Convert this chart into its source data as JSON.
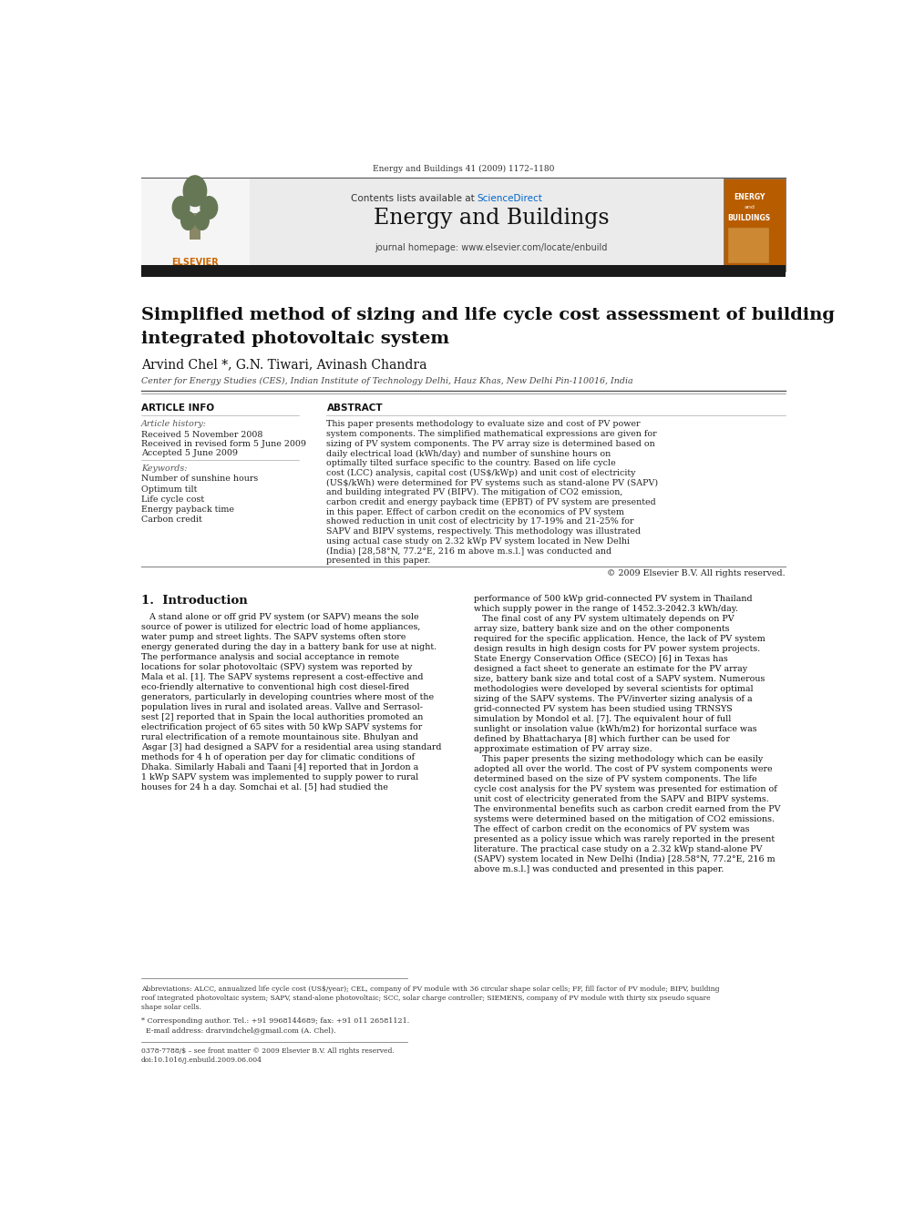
{
  "page_width": 9.92,
  "page_height": 13.23,
  "bg_color": "#ffffff",
  "header_journal_line": "Energy and Buildings 41 (2009) 1172–1180",
  "header_bg": "#e8e8e8",
  "header_contents_plain": "Contents lists available at ",
  "header_contents_link": "ScienceDirect",
  "header_sciencedirect_color": "#0066cc",
  "header_journal_title": "Energy and Buildings",
  "header_journal_url": "journal homepage: www.elsevier.com/locate/enbuild",
  "top_black_bar_color": "#1a1a1a",
  "paper_title_line1": "Simplified method of sizing and life cycle cost assessment of building",
  "paper_title_line2": "integrated photovoltaic system",
  "authors": "Arvind Chel *, G.N. Tiwari, Avinash Chandra",
  "affiliation": "Center for Energy Studies (CES), Indian Institute of Technology Delhi, Hauz Khas, New Delhi Pin-110016, India",
  "article_info_label": "ARTICLE INFO",
  "abstract_label": "ABSTRACT",
  "article_history_label": "Article history:",
  "received1": "Received 5 November 2008",
  "received2": "Received in revised form 5 June 2009",
  "accepted": "Accepted 5 June 2009",
  "keywords_label": "Keywords:",
  "keyword1": "Number of sunshine hours",
  "keyword2": "Optimum tilt",
  "keyword3": "Life cycle cost",
  "keyword4": "Energy payback time",
  "keyword5": "Carbon credit",
  "abstract_text": "This paper presents methodology to evaluate size and cost of PV power system components. The simplified mathematical expressions are given for sizing of PV system components. The PV array size is determined based on daily electrical load (kWh/day) and number of sunshine hours on optimally tilted surface specific to the country. Based on life cycle cost (LCC) analysis, capital cost (US$/kWp) and unit cost of electricity (US$/kWh) were determined for PV systems such as stand-alone PV (SAPV) and building integrated PV (BIPV). The mitigation of CO2 emission, carbon credit and energy payback time (EPBT) of PV system are presented in this paper. Effect of carbon credit on the economics of PV system showed reduction in unit cost of electricity by 17-19% and 21-25% for SAPV and BIPV systems, respectively. This methodology was illustrated using actual case study on 2.32 kWp PV system located in New Delhi (India) [28,58°N, 77.2°E, 216 m above m.s.l.] was conducted and presented in this paper.",
  "copyright": "© 2009 Elsevier B.V. All rights reserved.",
  "section1_title": "1.  Introduction",
  "intro_left_lines": [
    "   A stand alone or off grid PV system (or SAPV) means the sole",
    "source of power is utilized for electric load of home appliances,",
    "water pump and street lights. The SAPV systems often store",
    "energy generated during the day in a battery bank for use at night.",
    "The performance analysis and social acceptance in remote",
    "locations for solar photovoltaic (SPV) system was reported by",
    "Mala et al. [1]. The SAPV systems represent a cost-effective and",
    "eco-friendly alternative to conventional high cost diesel-fired",
    "generators, particularly in developing countries where most of the",
    "population lives in rural and isolated areas. Vallve and Serrasol-",
    "sest [2] reported that in Spain the local authorities promoted an",
    "electrification project of 65 sites with 50 kWp SAPV systems for",
    "rural electrification of a remote mountainous site. Bhulyan and",
    "Asgar [3] had designed a SAPV for a residential area using standard",
    "methods for 4 h of operation per day for climatic conditions of",
    "Dhaka. Similarly Habali and Taani [4] reported that in Jordon a",
    "1 kWp SAPV system was implemented to supply power to rural",
    "houses for 24 h a day. Somchai et al. [5] had studied the"
  ],
  "intro_right_lines": [
    "performance of 500 kWp grid-connected PV system in Thailand",
    "which supply power in the range of 1452.3-2042.3 kWh/day.",
    "   The final cost of any PV system ultimately depends on PV",
    "array size, battery bank size and on the other components",
    "required for the specific application. Hence, the lack of PV system",
    "design results in high design costs for PV power system projects.",
    "State Energy Conservation Office (SECO) [6] in Texas has",
    "designed a fact sheet to generate an estimate for the PV array",
    "size, battery bank size and total cost of a SAPV system. Numerous",
    "methodologies were developed by several scientists for optimal",
    "sizing of the SAPV systems. The PV/inverter sizing analysis of a",
    "grid-connected PV system has been studied using TRNSYS",
    "simulation by Mondol et al. [7]. The equivalent hour of full",
    "sunlight or insolation value (kWh/m2) for horizontal surface was",
    "defined by Bhattacharya [8] which further can be used for",
    "approximate estimation of PV array size.",
    "   This paper presents the sizing methodology which can be easily",
    "adopted all over the world. The cost of PV system components were",
    "determined based on the size of PV system components. The life",
    "cycle cost analysis for the PV system was presented for estimation of",
    "unit cost of electricity generated from the SAPV and BIPV systems.",
    "The environmental benefits such as carbon credit earned from the PV",
    "systems were determined based on the mitigation of CO2 emissions.",
    "The effect of carbon credit on the economics of PV system was",
    "presented as a policy issue which was rarely reported in the present",
    "literature. The practical case study on a 2.32 kWp stand-alone PV",
    "(SAPV) system located in New Delhi (India) [28.58°N, 77.2°E, 216 m",
    "above m.s.l.] was conducted and presented in this paper."
  ],
  "footnote_abbrev_lines": [
    "Abbreviations: ALCC, annualized life cycle cost (US$/year); CEL, company of PV module with 36 circular shape solar cells; FF, fill factor of PV module; BIPV, building",
    "roof integrated photovoltaic system; SAPV, stand-alone photovoltaic; SCC, solar charge controller; SIEMENS, company of PV module with thirty six pseudo square",
    "shape solar cells."
  ],
  "footnote_corr_lines": [
    "* Corresponding author. Tel.: +91 9968144689; fax: +91 011 26581121.",
    "  E-mail address: drarvindchel@gmail.com (A. Chel)."
  ],
  "footnote_issn_lines": [
    "0378-7788/$ – see front matter © 2009 Elsevier B.V. All rights reserved.",
    "doi:10.1016/j.enbuild.2009.06.004"
  ]
}
